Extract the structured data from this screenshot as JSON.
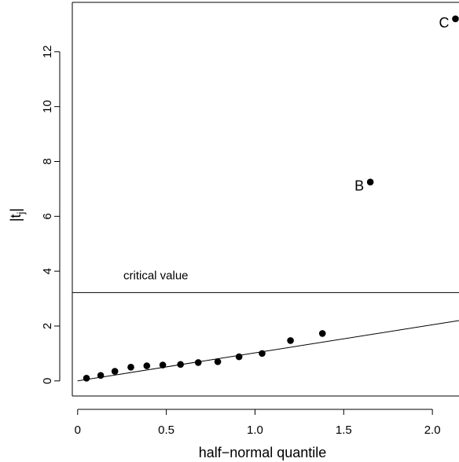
{
  "chart_data": {
    "type": "scatter",
    "title": "",
    "xlabel": "half−normal quantile",
    "ylabel": "|t",
    "ylabel_subscript": "j",
    "ylabel_close": "|",
    "xlim": [
      -0.03,
      2.15
    ],
    "ylim": [
      -0.55,
      13.8
    ],
    "xticks": [
      0,
      0.5,
      1.0,
      1.5,
      2.0
    ],
    "xtick_labels": [
      "0",
      "0.5",
      "1.0",
      "1.5",
      "2.0"
    ],
    "yticks": [
      0,
      2,
      4,
      6,
      8,
      10,
      12
    ],
    "ytick_labels": [
      "0",
      "2",
      "4",
      "6",
      "8",
      "10",
      "12"
    ],
    "grid": false,
    "points": [
      {
        "x": 0.05,
        "y": 0.1,
        "label": ""
      },
      {
        "x": 0.13,
        "y": 0.2,
        "label": ""
      },
      {
        "x": 0.21,
        "y": 0.35,
        "label": ""
      },
      {
        "x": 0.3,
        "y": 0.5,
        "label": ""
      },
      {
        "x": 0.39,
        "y": 0.55,
        "label": ""
      },
      {
        "x": 0.48,
        "y": 0.58,
        "label": ""
      },
      {
        "x": 0.58,
        "y": 0.6,
        "label": ""
      },
      {
        "x": 0.68,
        "y": 0.67,
        "label": ""
      },
      {
        "x": 0.79,
        "y": 0.7,
        "label": ""
      },
      {
        "x": 0.91,
        "y": 0.88,
        "label": ""
      },
      {
        "x": 1.04,
        "y": 1.0,
        "label": ""
      },
      {
        "x": 1.2,
        "y": 1.47,
        "label": ""
      },
      {
        "x": 1.38,
        "y": 1.73,
        "label": ""
      },
      {
        "x": 1.65,
        "y": 7.25,
        "label": "B"
      },
      {
        "x": 2.13,
        "y": 13.2,
        "label": "C"
      }
    ],
    "reference_line": {
      "x0": 0,
      "y0": 0,
      "x1": 2.15,
      "y1": 2.2
    },
    "critical_value": {
      "y": 3.22,
      "label": "critical value"
    }
  }
}
